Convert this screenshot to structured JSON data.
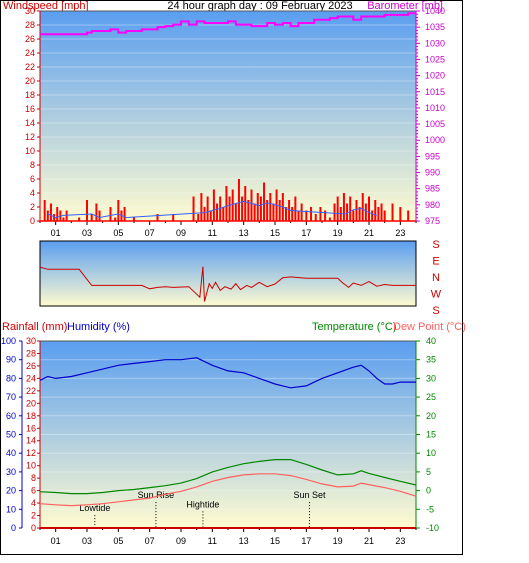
{
  "header": {
    "title": "24 hour graph day : 09 February 2023",
    "left_label": "Windspeed [mph]",
    "right_label": "Barometer [mb]"
  },
  "direction_labels": [
    "S",
    "E",
    "N",
    "W",
    "S"
  ],
  "bottom_header": {
    "rainfall_label": "Rainfall (mm)",
    "humidity_label": "Humidity (%)",
    "temperature_label": "Temperature (°C)",
    "dewpoint_label": "Dew Point (°C)"
  },
  "colors": {
    "wind": "#ff0000",
    "wind_avg": "#3060ff",
    "barometer": "#ff00ff",
    "direction": "#cc0000",
    "humidity": "#0000cc",
    "temperature": "#008800",
    "dewpoint": "#ff6060",
    "sky_top": "#5a9ef0",
    "sky_bottom": "#fffbd0"
  },
  "chart_data": [
    {
      "type": "line",
      "panel": "wind_barometer",
      "x_ticks": [
        "01",
        "03",
        "05",
        "07",
        "09",
        "11",
        "13",
        "15",
        "17",
        "19",
        "21",
        "23"
      ],
      "x_range": [
        0,
        24
      ],
      "y_left": {
        "label": "Windspeed [mph]",
        "range": [
          0,
          30
        ],
        "ticks": [
          0,
          2,
          4,
          6,
          8,
          10,
          12,
          14,
          16,
          18,
          20,
          22,
          24,
          26,
          28,
          30
        ]
      },
      "y_right": {
        "label": "Barometer [mb]",
        "range": [
          975,
          1040
        ],
        "ticks": [
          975,
          980,
          985,
          990,
          995,
          1000,
          1005,
          1010,
          1015,
          1020,
          1025,
          1030,
          1035,
          1040
        ]
      },
      "series": [
        {
          "name": "Barometer [mb]",
          "axis": "right",
          "x": [
            0,
            1,
            2,
            3,
            3.3,
            4,
            4.5,
            5,
            5.5,
            6,
            6.5,
            7,
            7.5,
            8,
            8.5,
            9,
            9.5,
            10,
            10.5,
            11,
            11.5,
            12,
            12.5,
            13,
            13.5,
            14,
            14.5,
            15,
            15.5,
            16,
            16.5,
            17,
            17.5,
            18,
            18.5,
            19,
            19.5,
            20,
            20.5,
            21,
            21.5,
            22,
            22.5,
            23,
            23.5,
            24
          ],
          "y": [
            1032.8,
            1032.8,
            1032.8,
            1033.3,
            1033.8,
            1033.8,
            1034.3,
            1033.3,
            1033.8,
            1033.8,
            1034.3,
            1034.3,
            1035.0,
            1035.3,
            1035.8,
            1036.8,
            1035.8,
            1036.8,
            1036.3,
            1036.3,
            1036.3,
            1036.8,
            1035.8,
            1035.8,
            1035.3,
            1035.3,
            1036.3,
            1035.8,
            1036.3,
            1035.3,
            1036.3,
            1036.3,
            1037.3,
            1037.3,
            1037.8,
            1038.3,
            1038.3,
            1037.3,
            1038.3,
            1038.3,
            1038.3,
            1038.8,
            1038.8,
            1038.8,
            1039.3,
            1039.3
          ]
        },
        {
          "name": "Gust",
          "axis": "left",
          "x": [
            0.3,
            0.5,
            0.7,
            0.9,
            1.1,
            1.3,
            1.5,
            1.7,
            2.5,
            3.0,
            3.3,
            3.6,
            3.8,
            4.5,
            4.8,
            5.0,
            5.2,
            5.4,
            6.0,
            7.5,
            8.5,
            9.8,
            10.1,
            10.3,
            10.5,
            10.7,
            10.9,
            11.1,
            11.3,
            11.5,
            11.7,
            11.9,
            12.1,
            12.3,
            12.5,
            12.7,
            12.9,
            13.1,
            13.3,
            13.5,
            13.7,
            13.9,
            14.1,
            14.3,
            14.5,
            14.7,
            14.9,
            15.1,
            15.3,
            15.5,
            15.7,
            15.9,
            16.1,
            16.3,
            16.5,
            16.7,
            17.0,
            17.3,
            17.6,
            17.9,
            18.2,
            18.5,
            18.8,
            19.0,
            19.2,
            19.4,
            19.6,
            19.8,
            20.0,
            20.2,
            20.4,
            20.6,
            20.8,
            21.0,
            21.2,
            21.4,
            21.6,
            21.8,
            22.0,
            22.5,
            23.0,
            23.5
          ],
          "y": [
            3,
            1.5,
            2.5,
            1,
            2,
            1.5,
            0.5,
            1.5,
            0.5,
            3,
            1,
            2.5,
            1.5,
            2,
            0.5,
            3,
            1.5,
            2,
            0.5,
            1,
            1,
            3.5,
            1,
            4,
            2,
            3.5,
            1.5,
            4.5,
            2.5,
            3.5,
            2,
            5,
            3.5,
            4.5,
            2.5,
            6,
            3.5,
            5,
            3,
            4.5,
            2.5,
            4,
            3.5,
            5.5,
            3,
            4,
            2.5,
            4.5,
            3,
            4,
            2,
            3,
            2,
            3.5,
            1.5,
            2.5,
            1.5,
            2,
            1,
            2,
            1.5,
            0.5,
            2.5,
            3.5,
            2,
            4,
            2.5,
            3.5,
            1.5,
            3,
            2,
            4,
            2.5,
            3.5,
            1.5,
            3,
            2,
            2.5,
            1.5,
            2.5,
            2,
            1.5
          ]
        },
        {
          "name": "Average",
          "axis": "left",
          "x": [
            0.5,
            1.0,
            1.5,
            3.3,
            3.8,
            5.0,
            5.5,
            10.5,
            11.0,
            11.5,
            12.0,
            12.5,
            13.0,
            13.5,
            14.0,
            14.5,
            15.0,
            15.5,
            16.0,
            19.5,
            20.0,
            20.5,
            21.0,
            21.5
          ],
          "y": [
            1,
            0.5,
            0.8,
            1,
            0.5,
            1,
            0.5,
            1.2,
            1.5,
            1.8,
            2.2,
            2.5,
            2.8,
            2.5,
            2.2,
            2.6,
            2.3,
            2,
            1.5,
            1,
            1.6,
            1.8,
            1.2,
            0.8
          ]
        }
      ]
    },
    {
      "type": "line",
      "panel": "wind_direction",
      "y_labels": [
        "S",
        "E",
        "N",
        "W",
        "S"
      ],
      "y_range": [
        0,
        360
      ],
      "series": [
        {
          "name": "Wind Direction",
          "x": [
            0,
            0.5,
            2.5,
            3.3,
            6.5,
            7.0,
            7.5,
            8.0,
            8.5,
            9.5,
            10.2,
            10.4,
            10.5,
            10.8,
            11.0,
            11.2,
            11.5,
            11.8,
            12.2,
            12.5,
            12.8,
            13.2,
            13.5,
            14.0,
            14.5,
            15.0,
            15.5,
            16.0,
            17.0,
            19.0,
            19.3,
            19.7,
            20.0,
            20.5,
            21.0,
            21.5,
            22.0,
            22.5,
            24.0
          ],
          "y": [
            142,
            155,
            155,
            250,
            250,
            270,
            262,
            258,
            262,
            258,
            320,
            140,
            345,
            240,
            268,
            232,
            280,
            258,
            272,
            240,
            275,
            250,
            262,
            232,
            258,
            242,
            205,
            200,
            208,
            208,
            234,
            262,
            236,
            250,
            228,
            255,
            245,
            250,
            250
          ]
        }
      ]
    },
    {
      "type": "line",
      "panel": "temperature_humidity",
      "x_ticks": [
        "01",
        "03",
        "05",
        "07",
        "09",
        "11",
        "13",
        "15",
        "17",
        "19",
        "21",
        "23"
      ],
      "x_range": [
        0,
        24
      ],
      "y_rain": {
        "label": "Rainfall (mm)",
        "range": [
          0,
          30
        ],
        "ticks": [
          0,
          2,
          4,
          6,
          8,
          10,
          12,
          14,
          16,
          18,
          20,
          22,
          24,
          26,
          28,
          30
        ]
      },
      "y_humidity": {
        "label": "Humidity (%)",
        "range": [
          0,
          100
        ],
        "ticks": [
          0,
          10,
          20,
          30,
          40,
          50,
          60,
          70,
          80,
          90,
          100
        ]
      },
      "y_temp": {
        "label": "Temperature (°C)",
        "range": [
          -10,
          40
        ],
        "ticks": [
          -10,
          -5,
          0,
          5,
          10,
          15,
          20,
          25,
          30,
          35,
          40
        ]
      },
      "annotations": [
        {
          "label": "Lowtide",
          "x": 3.5,
          "y_frac": 0.09
        },
        {
          "label": "Sun Rise",
          "x": 7.4,
          "y_frac": 0.16
        },
        {
          "label": "Hightide",
          "x": 10.4,
          "y_frac": 0.11
        },
        {
          "label": "Sun Set",
          "x": 17.2,
          "y_frac": 0.16
        }
      ],
      "series": [
        {
          "name": "Humidity (%)",
          "axis": "humidity",
          "x": [
            0,
            0.5,
            1,
            2,
            3,
            4,
            5,
            6,
            7,
            8,
            9,
            10,
            11,
            12,
            13,
            14,
            15,
            15.5,
            16,
            17,
            18,
            19,
            20,
            20.5,
            21,
            21.5,
            22,
            22.5,
            23,
            24
          ],
          "y": [
            79,
            81,
            80,
            81,
            83,
            85,
            87,
            88,
            89,
            90,
            90,
            91,
            87,
            84,
            83,
            80,
            77,
            76,
            75,
            76,
            80,
            83,
            86,
            87,
            84,
            80,
            77,
            77,
            78,
            78
          ]
        },
        {
          "name": "Temperature (°C)",
          "axis": "temp",
          "x": [
            0,
            1,
            2,
            3,
            4,
            5,
            6,
            7,
            8,
            9,
            10,
            11,
            12,
            13,
            14,
            15,
            16,
            17,
            18,
            19,
            20,
            20.5,
            21,
            22,
            23,
            24
          ],
          "y": [
            -0.3,
            -0.5,
            -0.8,
            -0.8,
            -0.5,
            0,
            0.3,
            0.8,
            1.3,
            2,
            3.2,
            5,
            6.2,
            7.2,
            7.8,
            8.3,
            8.3,
            7,
            5.5,
            4.2,
            4.5,
            5.3,
            4.6,
            3.5,
            2.5,
            1.5
          ]
        },
        {
          "name": "Dew Point (°C)",
          "axis": "temp",
          "x": [
            0,
            1,
            2,
            3,
            4,
            5,
            6,
            7,
            8,
            9,
            10,
            11,
            12,
            13,
            14,
            15,
            16,
            17,
            18,
            19,
            20,
            20.5,
            21,
            22,
            23,
            24
          ],
          "y": [
            -3.5,
            -3.8,
            -4,
            -3.8,
            -3.5,
            -3,
            -2.5,
            -2,
            -1,
            -0.2,
            1,
            2.5,
            3.5,
            4.2,
            4.5,
            4.5,
            4,
            3,
            1.8,
            1,
            1.2,
            2,
            1.6,
            0.8,
            -0.2,
            -1.5
          ]
        }
      ]
    }
  ]
}
